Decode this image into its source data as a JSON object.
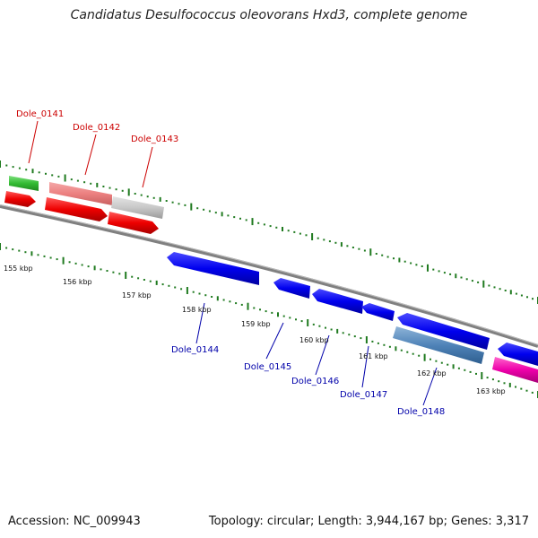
{
  "title": "Candidatus Desulfococcus oleovorans Hxd3, complete genome",
  "footer": {
    "accession": "Accession: NC_009943",
    "info": "Topology: circular; Length: 3,944,167 bp; Genes: 3,317"
  },
  "colors": {
    "backbone": "#808080",
    "tick": "#1f7a1f",
    "top_label": "#cc0000",
    "bottom_label": "#0000aa"
  },
  "scale_labels": [
    "155 kbp",
    "156 kbp",
    "157 kbp",
    "158 kbp",
    "159 kbp",
    "160 kbp",
    "161 kbp",
    "162 kbp",
    "163 kbp"
  ],
  "top_gene_labels": [
    "Dole_0141",
    "Dole_0142",
    "Dole_0143"
  ],
  "bottom_gene_labels": [
    "Dole_0144",
    "Dole_0145",
    "Dole_0146",
    "Dole_0147",
    "Dole_0148"
  ]
}
